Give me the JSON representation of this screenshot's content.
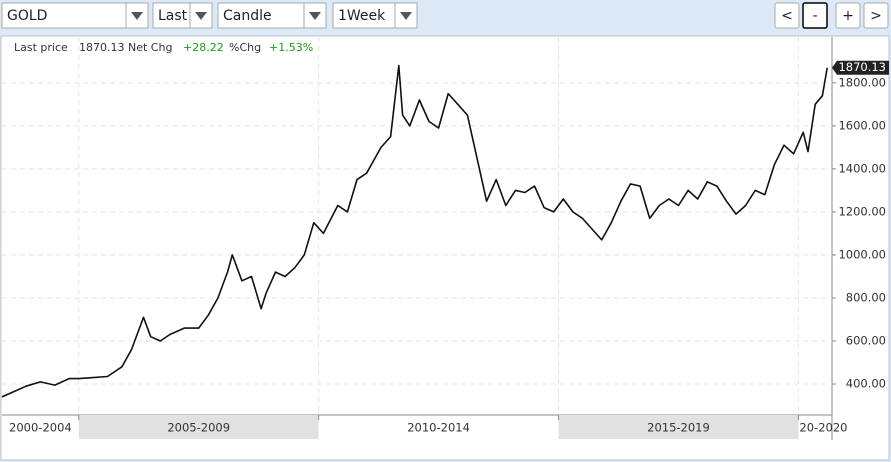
{
  "toolbar": {
    "symbol": "GOLD",
    "field": "Last",
    "style": "Candle",
    "interval": "1Week",
    "buttons": [
      "<",
      "-",
      "+",
      ">"
    ]
  },
  "chart_data": {
    "type": "line",
    "color": "#111111",
    "info": {
      "last_price_label": "Last price",
      "net_chg_label": "Net Chg",
      "net_chg": {
        "value": 28.22,
        "label": "+28.22"
      },
      "pct_chg_label": "%Chg",
      "pct_chg": {
        "value": 1.53,
        "label": "+1.53%"
      }
    },
    "last_price": 1870.13,
    "xlim": [
      2003.4,
      2020.7
    ],
    "ylim": [
      256,
      2013
    ],
    "yticks": [
      {
        "value": 400,
        "label": "400.00"
      },
      {
        "value": 600,
        "label": "600.00"
      },
      {
        "value": 800,
        "label": "800.00"
      },
      {
        "value": 1000,
        "label": "1000.00"
      },
      {
        "value": 1200,
        "label": "1200.00"
      },
      {
        "value": 1400,
        "label": "1400.00"
      },
      {
        "value": 1600,
        "label": "1600.00"
      },
      {
        "value": 1800,
        "label": "1800.00"
      }
    ],
    "grid": true,
    "periods": [
      {
        "label": "2000-2004",
        "start": 2000,
        "end": 2005
      },
      {
        "label": "2005-2009",
        "start": 2005,
        "end": 2010
      },
      {
        "label": "2010-2014",
        "start": 2010,
        "end": 2015
      },
      {
        "label": "2015-2019",
        "start": 2015,
        "end": 2020
      },
      {
        "label": "20-2020",
        "start": 2020,
        "end": 2025
      }
    ],
    "x": [
      2003.4,
      2003.6,
      2003.9,
      2004.2,
      2004.5,
      2004.8,
      2005.0,
      2005.3,
      2005.6,
      2005.9,
      2006.1,
      2006.35,
      2006.5,
      2006.7,
      2006.9,
      2007.2,
      2007.5,
      2007.7,
      2007.9,
      2008.1,
      2008.2,
      2008.4,
      2008.6,
      2008.8,
      2008.9,
      2009.1,
      2009.3,
      2009.5,
      2009.7,
      2009.9,
      2010.1,
      2010.4,
      2010.6,
      2010.8,
      2011.0,
      2011.3,
      2011.5,
      2011.67,
      2011.75,
      2011.9,
      2012.1,
      2012.3,
      2012.5,
      2012.7,
      2012.9,
      2013.1,
      2013.3,
      2013.5,
      2013.7,
      2013.9,
      2014.1,
      2014.3,
      2014.5,
      2014.7,
      2014.9,
      2015.1,
      2015.3,
      2015.5,
      2015.7,
      2015.9,
      2016.1,
      2016.3,
      2016.5,
      2016.7,
      2016.9,
      2017.1,
      2017.3,
      2017.5,
      2017.7,
      2017.9,
      2018.1,
      2018.3,
      2018.5,
      2018.7,
      2018.9,
      2019.1,
      2019.3,
      2019.5,
      2019.7,
      2019.9,
      2020.1,
      2020.2,
      2020.35,
      2020.5,
      2020.6
    ],
    "values": [
      340,
      360,
      390,
      410,
      395,
      425,
      425,
      430,
      435,
      480,
      560,
      710,
      620,
      600,
      630,
      660,
      660,
      720,
      800,
      920,
      1000,
      880,
      900,
      750,
      820,
      920,
      900,
      940,
      1000,
      1150,
      1100,
      1230,
      1200,
      1350,
      1380,
      1500,
      1550,
      1880,
      1650,
      1600,
      1720,
      1620,
      1590,
      1750,
      1700,
      1650,
      1450,
      1250,
      1350,
      1230,
      1300,
      1290,
      1320,
      1220,
      1200,
      1260,
      1200,
      1170,
      1120,
      1070,
      1150,
      1250,
      1330,
      1320,
      1170,
      1230,
      1260,
      1230,
      1300,
      1260,
      1340,
      1320,
      1250,
      1190,
      1230,
      1300,
      1280,
      1420,
      1510,
      1470,
      1570,
      1480,
      1700,
      1740,
      1870.13
    ]
  }
}
